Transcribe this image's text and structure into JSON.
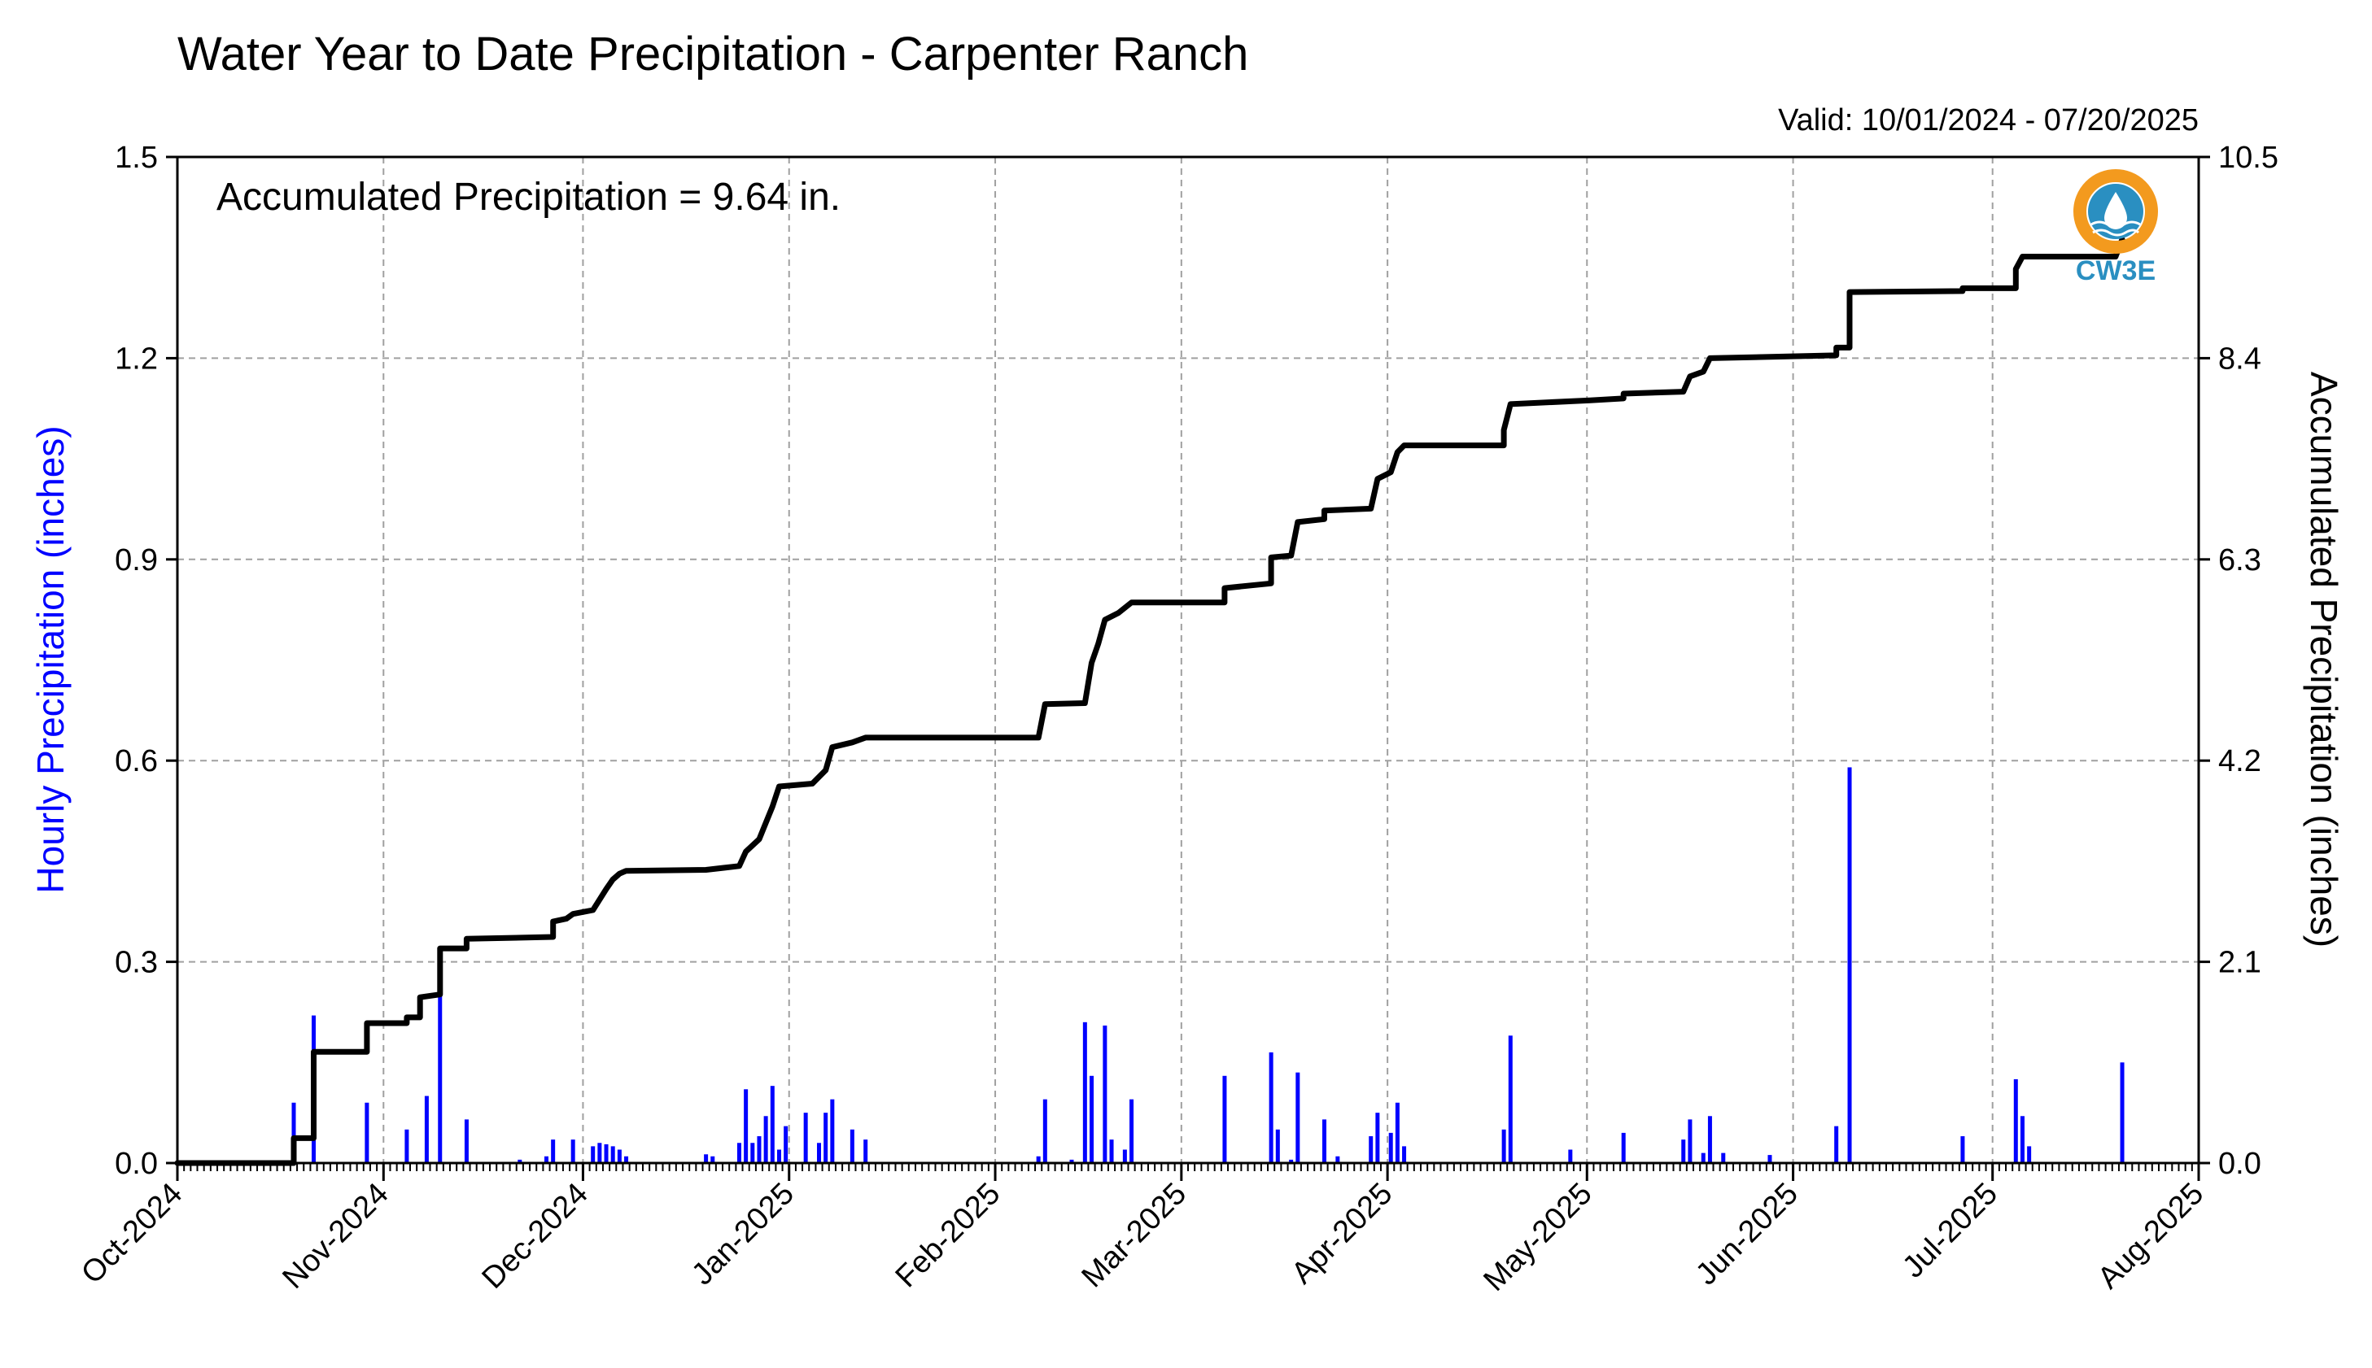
{
  "chart_data": {
    "type": "bar+line",
    "title": "Water Year to Date Precipitation - Carpenter Ranch",
    "subtitle": "Valid: 10/01/2024 - 07/20/2025",
    "annotation": "Accumulated Precipitation = 9.64 in.",
    "logo": {
      "text": "CW3E",
      "icon": "cw3e-drop-logo-icon",
      "ring_color": "#f39a1e",
      "text_color": "#2a8fc1"
    },
    "y_left": {
      "label": "Hourly Precipitation (inches)",
      "range": [
        0,
        1.5
      ],
      "ticks": [
        "0.0",
        "0.3",
        "0.6",
        "0.9",
        "1.2",
        "1.5"
      ],
      "color": "#0000ff"
    },
    "y_right": {
      "label": "Accumulated Precipitation (inches)",
      "range": [
        0,
        10.5
      ],
      "ticks": [
        "0.0",
        "2.1",
        "4.2",
        "6.3",
        "8.4",
        "10.5"
      ],
      "color": "#000000"
    },
    "x_axis": {
      "range": [
        "2024-10-01",
        "2025-08-01"
      ],
      "tick_labels": [
        "Oct-2024",
        "Nov-2024",
        "Dec-2024",
        "Jan-2025",
        "Feb-2025",
        "Mar-2025",
        "Apr-2025",
        "May-2025",
        "Jun-2025",
        "Jul-2025",
        "Aug-2025"
      ],
      "tick_dates": [
        "2024-10-01",
        "2024-11-01",
        "2024-12-01",
        "2025-01-01",
        "2025-02-01",
        "2025-03-01",
        "2025-04-01",
        "2025-05-01",
        "2025-06-01",
        "2025-07-01",
        "2025-08-01"
      ]
    },
    "grid": true,
    "series": [
      {
        "name": "Hourly Precipitation",
        "type": "bar",
        "axis": "left",
        "color": "#0000ff",
        "points": [
          [
            "2024-10-18",
            0.09
          ],
          [
            "2024-10-21",
            0.22
          ],
          [
            "2024-10-29",
            0.09
          ],
          [
            "2024-11-04",
            0.05
          ],
          [
            "2024-11-07",
            0.1
          ],
          [
            "2024-11-09",
            0.27
          ],
          [
            "2024-11-13",
            0.065
          ],
          [
            "2024-11-21",
            0.005
          ],
          [
            "2024-11-25",
            0.01
          ],
          [
            "2024-11-26",
            0.035
          ],
          [
            "2024-11-29",
            0.035
          ],
          [
            "2024-12-02",
            0.025
          ],
          [
            "2024-12-03",
            0.03
          ],
          [
            "2024-12-04",
            0.028
          ],
          [
            "2024-12-05",
            0.025
          ],
          [
            "2024-12-06",
            0.02
          ],
          [
            "2024-12-07",
            0.01
          ],
          [
            "2024-12-19",
            0.013
          ],
          [
            "2024-12-20",
            0.01
          ],
          [
            "2024-12-24",
            0.03
          ],
          [
            "2024-12-25",
            0.11
          ],
          [
            "2024-12-26",
            0.03
          ],
          [
            "2024-12-27",
            0.04
          ],
          [
            "2024-12-28",
            0.07
          ],
          [
            "2024-12-29",
            0.115
          ],
          [
            "2024-12-30",
            0.02
          ],
          [
            "2024-12-31",
            0.055
          ],
          [
            "2025-01-03",
            0.075
          ],
          [
            "2025-01-05",
            0.03
          ],
          [
            "2025-01-06",
            0.075
          ],
          [
            "2025-01-07",
            0.095
          ],
          [
            "2025-01-10",
            0.05
          ],
          [
            "2025-01-12",
            0.035
          ],
          [
            "2025-02-07",
            0.01
          ],
          [
            "2025-02-08",
            0.095
          ],
          [
            "2025-02-12",
            0.005
          ],
          [
            "2025-02-14",
            0.21
          ],
          [
            "2025-02-15",
            0.13
          ],
          [
            "2025-02-17",
            0.205
          ],
          [
            "2025-02-18",
            0.035
          ],
          [
            "2025-02-20",
            0.02
          ],
          [
            "2025-02-21",
            0.095
          ],
          [
            "2025-03-07",
            0.13
          ],
          [
            "2025-03-14",
            0.165
          ],
          [
            "2025-03-15",
            0.05
          ],
          [
            "2025-03-17",
            0.005
          ],
          [
            "2025-03-18",
            0.135
          ],
          [
            "2025-03-22",
            0.065
          ],
          [
            "2025-03-24",
            0.01
          ],
          [
            "2025-03-29",
            0.04
          ],
          [
            "2025-03-30",
            0.075
          ],
          [
            "2025-04-01",
            0.045
          ],
          [
            "2025-04-02",
            0.09
          ],
          [
            "2025-04-03",
            0.025
          ],
          [
            "2025-04-18",
            0.05
          ],
          [
            "2025-04-19",
            0.19
          ],
          [
            "2025-04-28",
            0.02
          ],
          [
            "2025-05-06",
            0.045
          ],
          [
            "2025-05-15",
            0.035
          ],
          [
            "2025-05-16",
            0.065
          ],
          [
            "2025-05-18",
            0.015
          ],
          [
            "2025-05-19",
            0.07
          ],
          [
            "2025-05-21",
            0.015
          ],
          [
            "2025-05-28",
            0.012
          ],
          [
            "2025-06-07",
            0.055
          ],
          [
            "2025-06-09",
            0.59
          ],
          [
            "2025-06-26",
            0.04
          ],
          [
            "2025-07-04",
            0.125
          ],
          [
            "2025-07-05",
            0.07
          ],
          [
            "2025-07-06",
            0.025
          ],
          [
            "2025-07-20",
            0.15
          ]
        ]
      },
      {
        "name": "Accumulated Precipitation",
        "type": "line",
        "axis": "right",
        "color": "#000000",
        "points": [
          [
            "2024-10-01",
            0.0
          ],
          [
            "2024-10-18",
            0.0
          ],
          [
            "2024-10-18",
            0.26
          ],
          [
            "2024-10-21",
            0.26
          ],
          [
            "2024-10-21",
            1.16
          ],
          [
            "2024-10-29",
            1.16
          ],
          [
            "2024-10-29",
            1.46
          ],
          [
            "2024-11-04",
            1.46
          ],
          [
            "2024-11-04",
            1.52
          ],
          [
            "2024-11-06",
            1.52
          ],
          [
            "2024-11-06",
            1.73
          ],
          [
            "2024-11-09",
            1.76
          ],
          [
            "2024-11-09",
            2.24
          ],
          [
            "2024-11-13",
            2.24
          ],
          [
            "2024-11-13",
            2.34
          ],
          [
            "2024-11-26",
            2.36
          ],
          [
            "2024-11-26",
            2.52
          ],
          [
            "2024-11-28",
            2.55
          ],
          [
            "2024-11-29",
            2.6
          ],
          [
            "2024-12-02",
            2.64
          ],
          [
            "2024-12-04",
            2.86
          ],
          [
            "2024-12-05",
            2.96
          ],
          [
            "2024-12-06",
            3.02
          ],
          [
            "2024-12-07",
            3.05
          ],
          [
            "2024-12-19",
            3.06
          ],
          [
            "2024-12-24",
            3.1
          ],
          [
            "2024-12-25",
            3.25
          ],
          [
            "2024-12-27",
            3.38
          ],
          [
            "2024-12-28",
            3.55
          ],
          [
            "2024-12-29",
            3.72
          ],
          [
            "2024-12-30",
            3.93
          ],
          [
            "2025-01-04",
            3.96
          ],
          [
            "2025-01-06",
            4.1
          ],
          [
            "2025-01-07",
            4.34
          ],
          [
            "2025-01-10",
            4.39
          ],
          [
            "2025-01-12",
            4.44
          ],
          [
            "2025-02-07",
            4.44
          ],
          [
            "2025-02-08",
            4.79
          ],
          [
            "2025-02-14",
            4.8
          ],
          [
            "2025-02-15",
            5.22
          ],
          [
            "2025-02-16",
            5.42
          ],
          [
            "2025-02-17",
            5.67
          ],
          [
            "2025-02-19",
            5.74
          ],
          [
            "2025-02-21",
            5.85
          ],
          [
            "2025-03-07",
            5.85
          ],
          [
            "2025-03-07",
            6.0
          ],
          [
            "2025-03-14",
            6.05
          ],
          [
            "2025-03-14",
            6.32
          ],
          [
            "2025-03-17",
            6.34
          ],
          [
            "2025-03-18",
            6.69
          ],
          [
            "2025-03-22",
            6.72
          ],
          [
            "2025-03-22",
            6.81
          ],
          [
            "2025-03-29",
            6.83
          ],
          [
            "2025-03-30",
            7.14
          ],
          [
            "2025-04-01",
            7.21
          ],
          [
            "2025-04-02",
            7.42
          ],
          [
            "2025-04-03",
            7.49
          ],
          [
            "2025-04-18",
            7.49
          ],
          [
            "2025-04-18",
            7.65
          ],
          [
            "2025-04-19",
            7.92
          ],
          [
            "2025-05-01",
            7.96
          ],
          [
            "2025-05-06",
            7.98
          ],
          [
            "2025-05-06",
            8.03
          ],
          [
            "2025-05-15",
            8.05
          ],
          [
            "2025-05-16",
            8.21
          ],
          [
            "2025-05-18",
            8.26
          ],
          [
            "2025-05-19",
            8.4
          ],
          [
            "2025-06-07",
            8.43
          ],
          [
            "2025-06-07",
            8.51
          ],
          [
            "2025-06-09",
            8.51
          ],
          [
            "2025-06-09",
            9.09
          ],
          [
            "2025-06-26",
            9.1
          ],
          [
            "2025-06-26",
            9.13
          ],
          [
            "2025-07-04",
            9.13
          ],
          [
            "2025-07-04",
            9.33
          ],
          [
            "2025-07-05",
            9.46
          ],
          [
            "2025-07-06",
            9.46
          ],
          [
            "2025-07-19",
            9.46
          ],
          [
            "2025-07-20",
            9.64
          ]
        ]
      }
    ]
  }
}
